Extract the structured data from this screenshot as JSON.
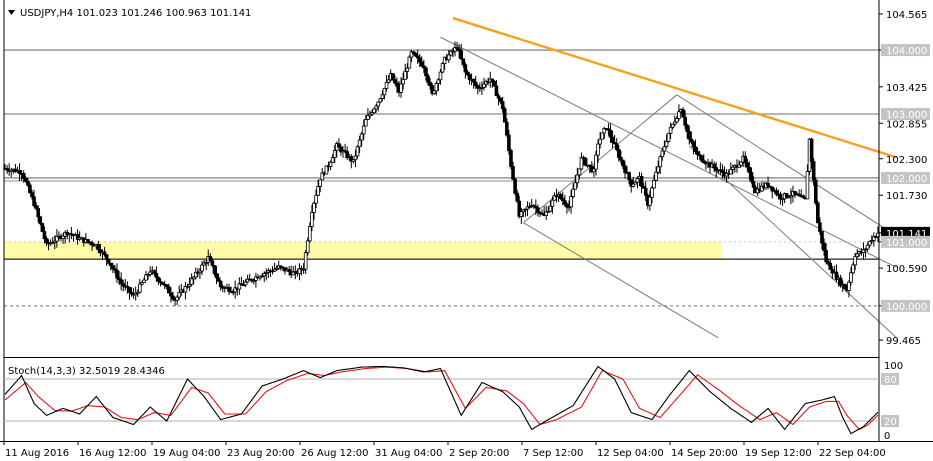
{
  "header": {
    "menu_icon": "triangle-down-icon",
    "symbol_info": "USDJPY,H4  101.023 101.246 100.963 101.141"
  },
  "osc_header": "Stoch(14,3,3) 32.5019 28.4346",
  "colors": {
    "background": "#ffffff",
    "candle": "#000000",
    "trendline": "#f4a21d",
    "zone": "#fffba6",
    "channel": "#7a7a7a",
    "level_line": "#8c8c8c",
    "stoch_main": "#000000",
    "stoch_signal": "#e01818",
    "price_label_bg": "#c4c4c4",
    "current_label_bg": "#000000"
  },
  "chart_data": {
    "type": "candlestick",
    "price_axis": {
      "ticks": [
        104.565,
        104.0,
        103.425,
        102.855,
        102.3,
        101.73,
        101.141,
        101.0,
        100.59,
        100.0,
        99.465
      ],
      "tick_labels": [
        "104.565",
        "104.000",
        "103.425",
        "102.855",
        "102.300",
        "101.730",
        "101.141",
        "101.000",
        "100.590",
        "100.000",
        "99.465"
      ],
      "range": [
        99.2,
        104.72
      ],
      "current_price": 101.141,
      "highlighted_levels": [
        104.0,
        103.0,
        102.0,
        101.0,
        100.0
      ]
    },
    "horizontal_levels": [
      104.0,
      103.0,
      102.0,
      100.73,
      100.0
    ],
    "support_zone": [
      100.73,
      101.0
    ],
    "x_axis_labels": [
      "11 Aug 2016",
      "16 Aug 12:00",
      "19 Aug 04:00",
      "23 Aug 20:00",
      "26 Aug 12:00",
      "31 Aug 04:00",
      "2 Sep 20:00",
      "7 Sep 12:00",
      "12 Sep 04:00",
      "14 Sep 20:00",
      "19 Sep 12:00",
      "22 Sep 04:00"
    ],
    "price_path": [
      [
        0,
        102.15
      ],
      [
        8,
        102.1
      ],
      [
        14,
        101.6
      ],
      [
        20,
        100.95
      ],
      [
        30,
        101.15
      ],
      [
        36,
        101.05
      ],
      [
        44,
        100.95
      ],
      [
        50,
        100.7
      ],
      [
        56,
        100.35
      ],
      [
        62,
        100.15
      ],
      [
        70,
        100.55
      ],
      [
        76,
        100.35
      ],
      [
        82,
        100.1
      ],
      [
        90,
        100.4
      ],
      [
        98,
        100.75
      ],
      [
        104,
        100.3
      ],
      [
        110,
        100.25
      ],
      [
        118,
        100.4
      ],
      [
        124,
        100.5
      ],
      [
        132,
        100.6
      ],
      [
        140,
        100.5
      ],
      [
        144,
        100.6
      ],
      [
        148,
        101.5
      ],
      [
        152,
        102.0
      ],
      [
        156,
        102.2
      ],
      [
        160,
        102.5
      ],
      [
        168,
        102.25
      ],
      [
        174,
        102.9
      ],
      [
        180,
        103.2
      ],
      [
        186,
        103.6
      ],
      [
        190,
        103.35
      ],
      [
        196,
        103.95
      ],
      [
        202,
        103.75
      ],
      [
        206,
        103.3
      ],
      [
        212,
        103.85
      ],
      [
        218,
        104.05
      ],
      [
        222,
        103.65
      ],
      [
        228,
        103.4
      ],
      [
        234,
        103.55
      ],
      [
        240,
        103.1
      ],
      [
        244,
        102.2
      ],
      [
        248,
        101.4
      ],
      [
        254,
        101.6
      ],
      [
        260,
        101.4
      ],
      [
        266,
        101.75
      ],
      [
        272,
        101.55
      ],
      [
        278,
        102.3
      ],
      [
        284,
        102.1
      ],
      [
        286,
        102.55
      ],
      [
        290,
        102.8
      ],
      [
        294,
        102.5
      ],
      [
        298,
        102.2
      ],
      [
        302,
        101.9
      ],
      [
        306,
        102.0
      ],
      [
        310,
        101.6
      ],
      [
        316,
        102.3
      ],
      [
        320,
        102.7
      ],
      [
        326,
        103.1
      ],
      [
        330,
        102.6
      ],
      [
        334,
        102.35
      ],
      [
        340,
        102.2
      ],
      [
        348,
        102.05
      ],
      [
        356,
        102.3
      ],
      [
        362,
        101.8
      ],
      [
        368,
        101.9
      ],
      [
        374,
        101.7
      ],
      [
        380,
        101.75
      ],
      [
        386,
        101.65
      ],
      [
        388,
        102.6
      ],
      [
        392,
        101.3
      ],
      [
        396,
        100.7
      ],
      [
        402,
        100.4
      ],
      [
        406,
        100.25
      ],
      [
        410,
        100.8
      ],
      [
        414,
        100.85
      ],
      [
        418,
        101.05
      ],
      [
        421,
        101.141
      ]
    ],
    "trendlines": [
      {
        "from": [
          216,
          104.5
        ],
        "to": [
          430,
          102.32
        ],
        "color": "trendline"
      }
    ],
    "channel_lines": [
      {
        "from": [
          210,
          104.2
        ],
        "to": [
          430,
          100.6
        ]
      },
      {
        "from": [
          324,
          103.3
        ],
        "to": [
          432,
          101.05
        ]
      },
      {
        "from": [
          250,
          101.3
        ],
        "to": [
          344,
          99.5
        ]
      },
      {
        "from": [
          330,
          102.5
        ],
        "to": [
          430,
          99.5
        ]
      },
      {
        "from": [
          250,
          101.3
        ],
        "to": [
          324,
          103.3
        ]
      }
    ],
    "stochastic": {
      "k": 32.5019,
      "d": 28.4346,
      "ticks": [
        100,
        80,
        20,
        0
      ],
      "tick_labels": [
        "100",
        "80",
        "20",
        "0"
      ],
      "levels": [
        80,
        20
      ],
      "k_path": [
        [
          0,
          58
        ],
        [
          8,
          85
        ],
        [
          14,
          45
        ],
        [
          20,
          28
        ],
        [
          28,
          38
        ],
        [
          36,
          30
        ],
        [
          44,
          55
        ],
        [
          52,
          25
        ],
        [
          62,
          15
        ],
        [
          70,
          40
        ],
        [
          78,
          20
        ],
        [
          88,
          80
        ],
        [
          96,
          55
        ],
        [
          104,
          22
        ],
        [
          114,
          30
        ],
        [
          124,
          70
        ],
        [
          134,
          80
        ],
        [
          144,
          92
        ],
        [
          152,
          82
        ],
        [
          160,
          92
        ],
        [
          172,
          97
        ],
        [
          182,
          98
        ],
        [
          192,
          96
        ],
        [
          202,
          90
        ],
        [
          210,
          95
        ],
        [
          220,
          28
        ],
        [
          230,
          75
        ],
        [
          240,
          62
        ],
        [
          248,
          40
        ],
        [
          254,
          8
        ],
        [
          262,
          22
        ],
        [
          274,
          42
        ],
        [
          286,
          98
        ],
        [
          294,
          80
        ],
        [
          302,
          32
        ],
        [
          312,
          22
        ],
        [
          320,
          55
        ],
        [
          330,
          92
        ],
        [
          340,
          62
        ],
        [
          350,
          38
        ],
        [
          360,
          18
        ],
        [
          368,
          38
        ],
        [
          376,
          8
        ],
        [
          386,
          45
        ],
        [
          394,
          50
        ],
        [
          400,
          55
        ],
        [
          404,
          25
        ],
        [
          408,
          2
        ],
        [
          414,
          12
        ],
        [
          421,
          32.5
        ]
      ],
      "d_path": [
        [
          0,
          50
        ],
        [
          10,
          75
        ],
        [
          16,
          55
        ],
        [
          24,
          35
        ],
        [
          32,
          34
        ],
        [
          40,
          42
        ],
        [
          48,
          40
        ],
        [
          56,
          25
        ],
        [
          64,
          22
        ],
        [
          72,
          32
        ],
        [
          80,
          28
        ],
        [
          90,
          68
        ],
        [
          98,
          60
        ],
        [
          106,
          30
        ],
        [
          116,
          30
        ],
        [
          126,
          62
        ],
        [
          136,
          78
        ],
        [
          146,
          88
        ],
        [
          154,
          85
        ],
        [
          162,
          90
        ],
        [
          174,
          95
        ],
        [
          184,
          97
        ],
        [
          194,
          95
        ],
        [
          204,
          90
        ],
        [
          212,
          92
        ],
        [
          222,
          38
        ],
        [
          232,
          68
        ],
        [
          242,
          63
        ],
        [
          250,
          45
        ],
        [
          258,
          15
        ],
        [
          266,
          22
        ],
        [
          278,
          40
        ],
        [
          288,
          92
        ],
        [
          298,
          80
        ],
        [
          306,
          38
        ],
        [
          316,
          25
        ],
        [
          324,
          52
        ],
        [
          334,
          86
        ],
        [
          344,
          65
        ],
        [
          354,
          42
        ],
        [
          364,
          22
        ],
        [
          372,
          32
        ],
        [
          380,
          15
        ],
        [
          388,
          40
        ],
        [
          396,
          48
        ],
        [
          402,
          48
        ],
        [
          406,
          28
        ],
        [
          412,
          8
        ],
        [
          416,
          14
        ],
        [
          421,
          28.4
        ]
      ]
    }
  }
}
